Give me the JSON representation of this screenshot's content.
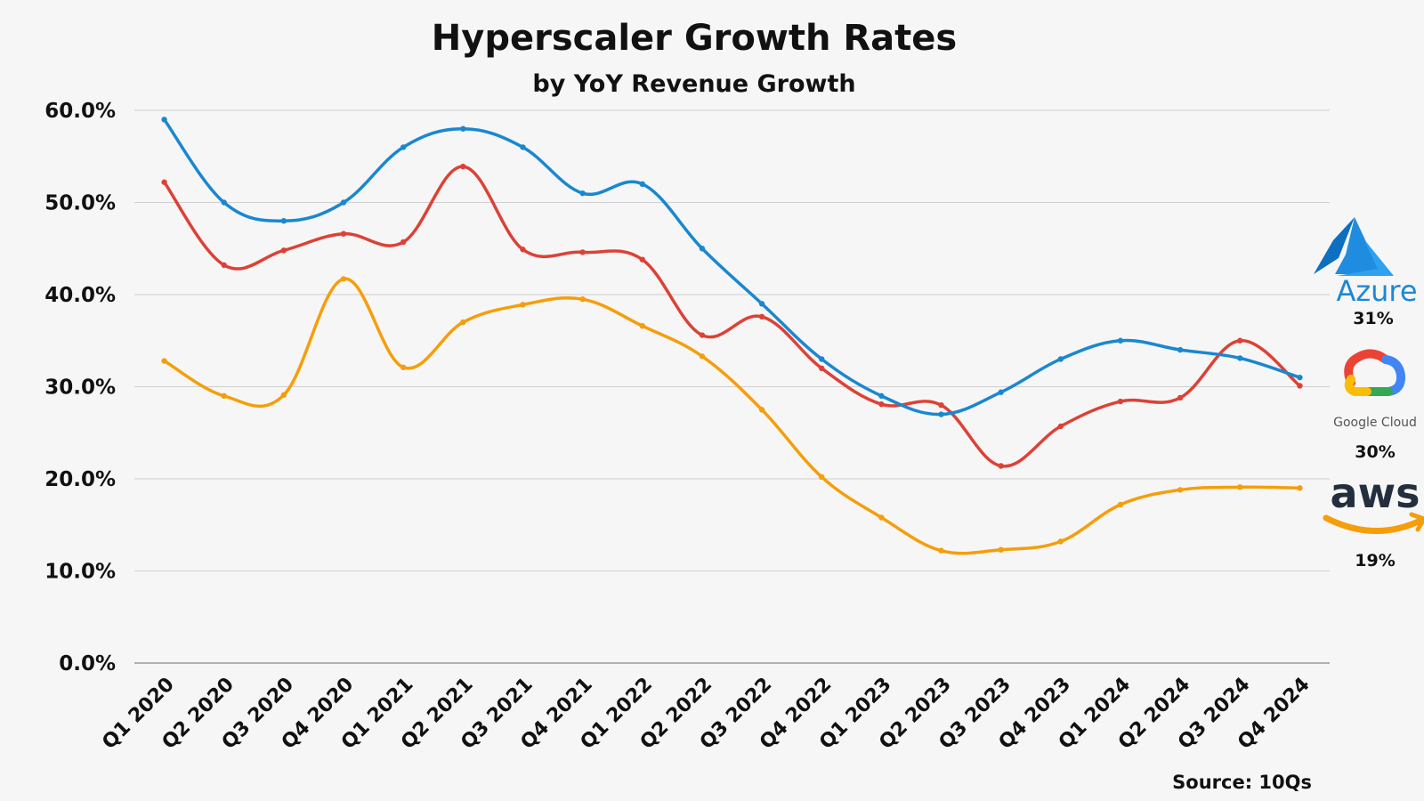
{
  "chart_data": {
    "type": "line",
    "title": "Hyperscaler Growth Rates",
    "subtitle": "by YoY Revenue Growth",
    "xlabel": "",
    "ylabel": "",
    "ylim": [
      0,
      60
    ],
    "yticks": [
      "0.0%",
      "10.0%",
      "20.0%",
      "30.0%",
      "40.0%",
      "50.0%",
      "60.0%"
    ],
    "grid": true,
    "smooth": true,
    "categories": [
      "Q1 2020",
      "Q2 2020",
      "Q3 2020",
      "Q4 2020",
      "Q1 2021",
      "Q2 2021",
      "Q3 2021",
      "Q4 2021",
      "Q1 2022",
      "Q2 2022",
      "Q3 2022",
      "Q4 2022",
      "Q1 2023",
      "Q2 2023",
      "Q3 2023",
      "Q4 2023",
      "Q1 2024",
      "Q2 2024",
      "Q3 2024",
      "Q4 2024"
    ],
    "series": [
      {
        "logo_word": "Azure",
        "color": "#1a87d0",
        "end_label": "31%",
        "icon": "azure-logo-icon",
        "values": [
          59,
          50,
          48,
          50,
          56,
          58,
          56,
          51,
          52,
          45,
          39,
          33,
          29,
          27,
          29.4,
          33,
          35,
          34,
          33.1,
          31
        ]
      },
      {
        "logo_word": "Google Cloud",
        "color": "#dd4136",
        "end_label": "30%",
        "icon": "google-cloud-logo-icon",
        "values": [
          52.2,
          43.2,
          44.8,
          46.6,
          45.7,
          53.9,
          44.9,
          44.6,
          43.8,
          35.6,
          37.6,
          32,
          28.1,
          28,
          21.4,
          25.7,
          28.4,
          28.8,
          35,
          30.1
        ]
      },
      {
        "logo_word": "aws",
        "color": "#f59e0b",
        "end_label": "19%",
        "icon": "aws-logo-icon",
        "values": [
          32.8,
          29,
          29.1,
          41.7,
          32.1,
          37,
          38.9,
          39.5,
          36.6,
          33.3,
          27.5,
          20.2,
          15.8,
          12.2,
          12.3,
          13.2,
          17.2,
          18.8,
          19.1,
          19
        ]
      }
    ],
    "source": "Source: 10Qs"
  }
}
